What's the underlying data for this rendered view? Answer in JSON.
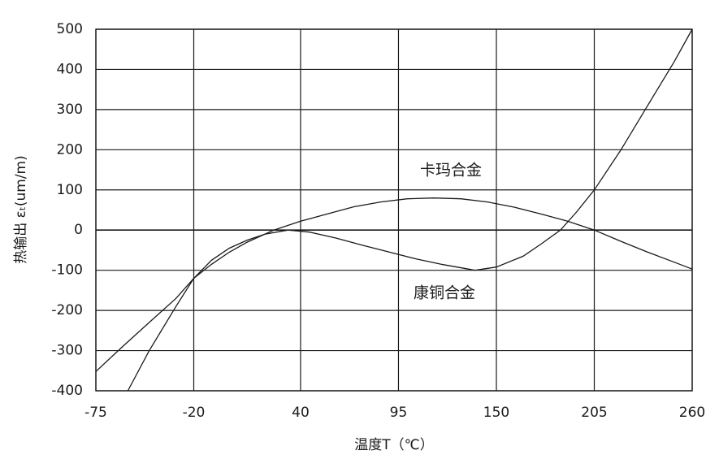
{
  "chart_data": {
    "type": "line",
    "y_label": "热输出 εₜ(um/m)",
    "x_label": "温度T（℃）",
    "series": [
      {
        "name": "卡玛合金",
        "color": "#1a1a1a",
        "x": [
          -75,
          -60,
          -45,
          -30,
          -20,
          -10,
          0,
          10,
          25,
          40,
          55,
          70,
          85,
          100,
          115,
          130,
          145,
          160,
          175,
          190,
          205,
          220,
          235,
          250,
          260
        ],
        "values": [
          -352,
          -290,
          -230,
          -170,
          -120,
          -85,
          -55,
          -30,
          0,
          22,
          40,
          58,
          70,
          78,
          80,
          78,
          70,
          57,
          40,
          22,
          0,
          -28,
          -55,
          -80,
          -97
        ]
      },
      {
        "name": "康铜合金",
        "color": "#1a1a1a",
        "x": [
          -57,
          -45,
          -30,
          -20,
          -10,
          0,
          10,
          20,
          33,
          45,
          60,
          75,
          90,
          105,
          120,
          138,
          150,
          165,
          175,
          186,
          195,
          205,
          220,
          235,
          250,
          260
        ],
        "values": [
          -400,
          -300,
          -190,
          -120,
          -75,
          -45,
          -25,
          -10,
          0,
          -5,
          -20,
          -38,
          -55,
          -72,
          -86,
          -100,
          -92,
          -65,
          -35,
          0,
          45,
          100,
          200,
          310,
          420,
          500
        ]
      }
    ],
    "xlim": [
      -75,
      260
    ],
    "xticks": [
      -75,
      -20,
      40,
      95,
      150,
      205,
      260
    ],
    "ylim": [
      -400,
      500
    ],
    "yticks": [
      -400,
      -300,
      -200,
      -100,
      0,
      100,
      200,
      300,
      400,
      500
    ],
    "grid": true
  }
}
